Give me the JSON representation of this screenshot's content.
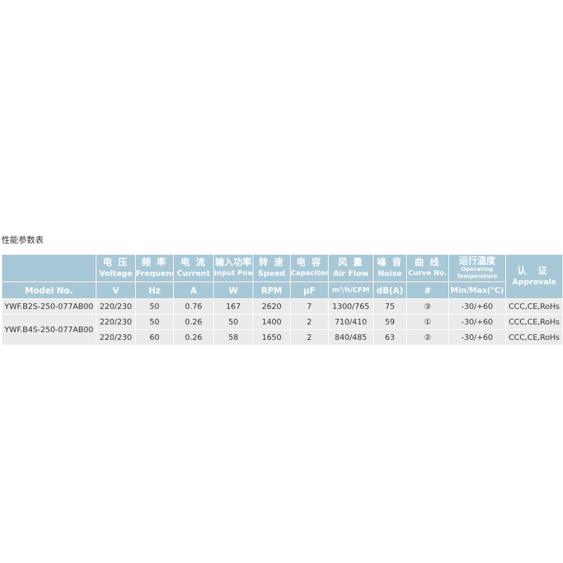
{
  "title": "性能参数表",
  "header": {
    "model_label": "Model No.",
    "columns": [
      {
        "zh": "电 压",
        "en": "Voltage",
        "unit": "V"
      },
      {
        "zh": "频 率",
        "en": "Frequency",
        "unit": "Hz"
      },
      {
        "zh": "电 流",
        "en": "Current",
        "unit": "A"
      },
      {
        "zh": "输入功率",
        "en": "Input Power",
        "unit": "W"
      },
      {
        "zh": "转 速",
        "en": "Speed",
        "unit": "RPM"
      },
      {
        "zh": "电 容",
        "en": "Capacitor",
        "unit": "μF"
      },
      {
        "zh": "风 量",
        "en": "Air Flow",
        "unit": "m³/h/CFM"
      },
      {
        "zh": "噪 音",
        "en": "Noise",
        "unit": "dB(A)"
      },
      {
        "zh": "曲 线",
        "en": "Curve No.",
        "unit": "#"
      },
      {
        "zh": "运行温度",
        "en": "Operating Temperature",
        "unit": "Min/Max(°C)"
      }
    ],
    "approvals": {
      "zh": "认 证",
      "en": "Approvals"
    }
  },
  "models": [
    "YWF.B2S-250-077AB00",
    "YWF.B4S-250-077AB00"
  ],
  "rows": [
    [
      "220/230",
      "50",
      "0.76",
      "167",
      "2620",
      "7",
      "1300/765",
      "75",
      "③",
      "-30/+60",
      "CCC,CE,RoHs"
    ],
    [
      "220/230",
      "50",
      "0.26",
      "50",
      "1400",
      "2",
      "710/410",
      "59",
      "①",
      "-30/+60",
      "CCC,CE,RoHs"
    ],
    [
      "220/230",
      "60",
      "0.26",
      "58",
      "1650",
      "2",
      "840/485",
      "63",
      "②",
      "-30/+60",
      "CCC,CE,RoHs"
    ]
  ]
}
